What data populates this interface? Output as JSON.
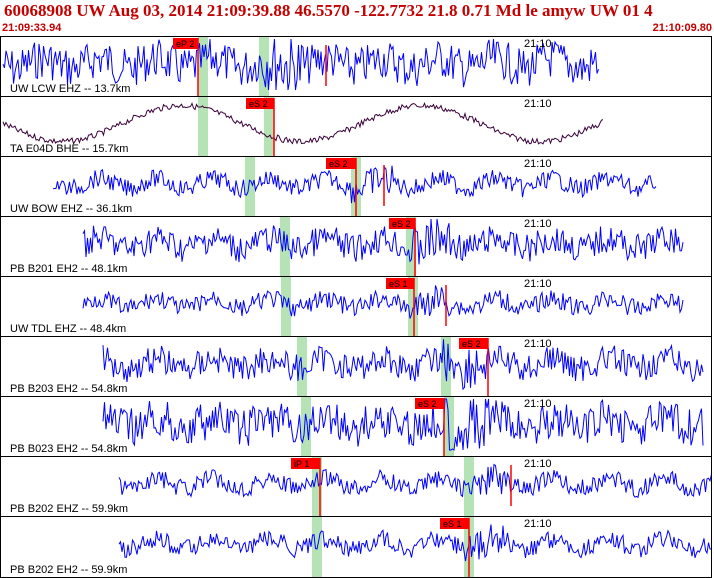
{
  "header": {
    "title": "60068908 UW Aug 03, 2014 21:09:39.88   46.5570 -122.7732 21.8 0.71 Md le amyw UW 01   4",
    "start_time": "21:09:33.94",
    "end_time": "21:10:09.80"
  },
  "colors": {
    "trace_default": "#0000ff",
    "trace_bhe": "#3a003a",
    "pick": "#ff0000",
    "window": "#b6e3b6",
    "title": "#c40000"
  },
  "traces": [
    {
      "label": "UW LCW EHZ -- 13.7km",
      "time_mark": "21:10",
      "pick": "eP 2",
      "amp": "high",
      "color": "blue"
    },
    {
      "label": "TA E04D BHE -- 15.7km",
      "time_mark": "21:10",
      "pick": "eS 2",
      "amp": "sine",
      "color": "dark"
    },
    {
      "label": "UW BOW EHZ -- 36.1km",
      "time_mark": "21:10",
      "pick": "eS 2",
      "amp": "low",
      "color": "blue"
    },
    {
      "label": "PB B201 EH2 -- 48.1km",
      "time_mark": "21:10",
      "pick": "eS 2",
      "amp": "mid",
      "color": "blue"
    },
    {
      "label": "UW TDL EHZ -- 48.4km",
      "time_mark": "21:10",
      "pick": "eS 1",
      "amp": "low",
      "color": "blue"
    },
    {
      "label": "PB B203 EH2 -- 54.8km",
      "time_mark": "21:10",
      "pick": "eS 2",
      "amp": "mid",
      "color": "blue"
    },
    {
      "label": "PB B023 EH2 -- 54.8km",
      "time_mark": "21:10",
      "pick": "eS 2",
      "amp": "high",
      "color": "blue"
    },
    {
      "label": "PB B202 EHZ -- 59.9km",
      "time_mark": "21:10",
      "pick": "iP 1",
      "amp": "low",
      "color": "blue"
    },
    {
      "label": "PB B202 EH2 -- 59.9km",
      "time_mark": "21:10",
      "pick": "eS 1",
      "amp": "low",
      "color": "blue"
    }
  ]
}
